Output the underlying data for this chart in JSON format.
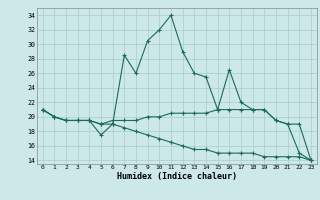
{
  "xlabel": "Humidex (Indice chaleur)",
  "bg_color": "#cce8e8",
  "grid_color": "#aacccc",
  "line_color": "#1a6b5a",
  "xlim": [
    -0.5,
    23.5
  ],
  "ylim": [
    13.5,
    35
  ],
  "yticks": [
    14,
    16,
    18,
    20,
    22,
    24,
    26,
    28,
    30,
    32,
    34
  ],
  "xticks": [
    0,
    1,
    2,
    3,
    4,
    5,
    6,
    7,
    8,
    9,
    10,
    11,
    12,
    13,
    14,
    15,
    16,
    17,
    18,
    19,
    20,
    21,
    22,
    23
  ],
  "line1_x": [
    0,
    1,
    2,
    3,
    4,
    5,
    6,
    7,
    8,
    9,
    10,
    11,
    12,
    13,
    14,
    15,
    16,
    17,
    18,
    19,
    20,
    21,
    22,
    23
  ],
  "line1_y": [
    21,
    20,
    19.5,
    19.5,
    19.5,
    17.5,
    19,
    28.5,
    26,
    30.5,
    32,
    34,
    29,
    26,
    25.5,
    21,
    26.5,
    22,
    21,
    21,
    19.5,
    19,
    15,
    14
  ],
  "line2_x": [
    0,
    1,
    2,
    3,
    4,
    5,
    6,
    7,
    8,
    9,
    10,
    11,
    12,
    13,
    14,
    15,
    16,
    17,
    18,
    19,
    20,
    21,
    22,
    23
  ],
  "line2_y": [
    21,
    20,
    19.5,
    19.5,
    19.5,
    19,
    19.5,
    19.5,
    19.5,
    20,
    20,
    20.5,
    20.5,
    20.5,
    20.5,
    21,
    21,
    21,
    21,
    21,
    19.5,
    19,
    19,
    14
  ],
  "line3_x": [
    0,
    1,
    2,
    3,
    4,
    5,
    6,
    7,
    8,
    9,
    10,
    11,
    12,
    13,
    14,
    15,
    16,
    17,
    18,
    19,
    20,
    21,
    22,
    23
  ],
  "line3_y": [
    21,
    20,
    19.5,
    19.5,
    19.5,
    19,
    19,
    18.5,
    18,
    17.5,
    17,
    16.5,
    16,
    15.5,
    15.5,
    15,
    15,
    15,
    15,
    14.5,
    14.5,
    14.5,
    14.5,
    14
  ]
}
